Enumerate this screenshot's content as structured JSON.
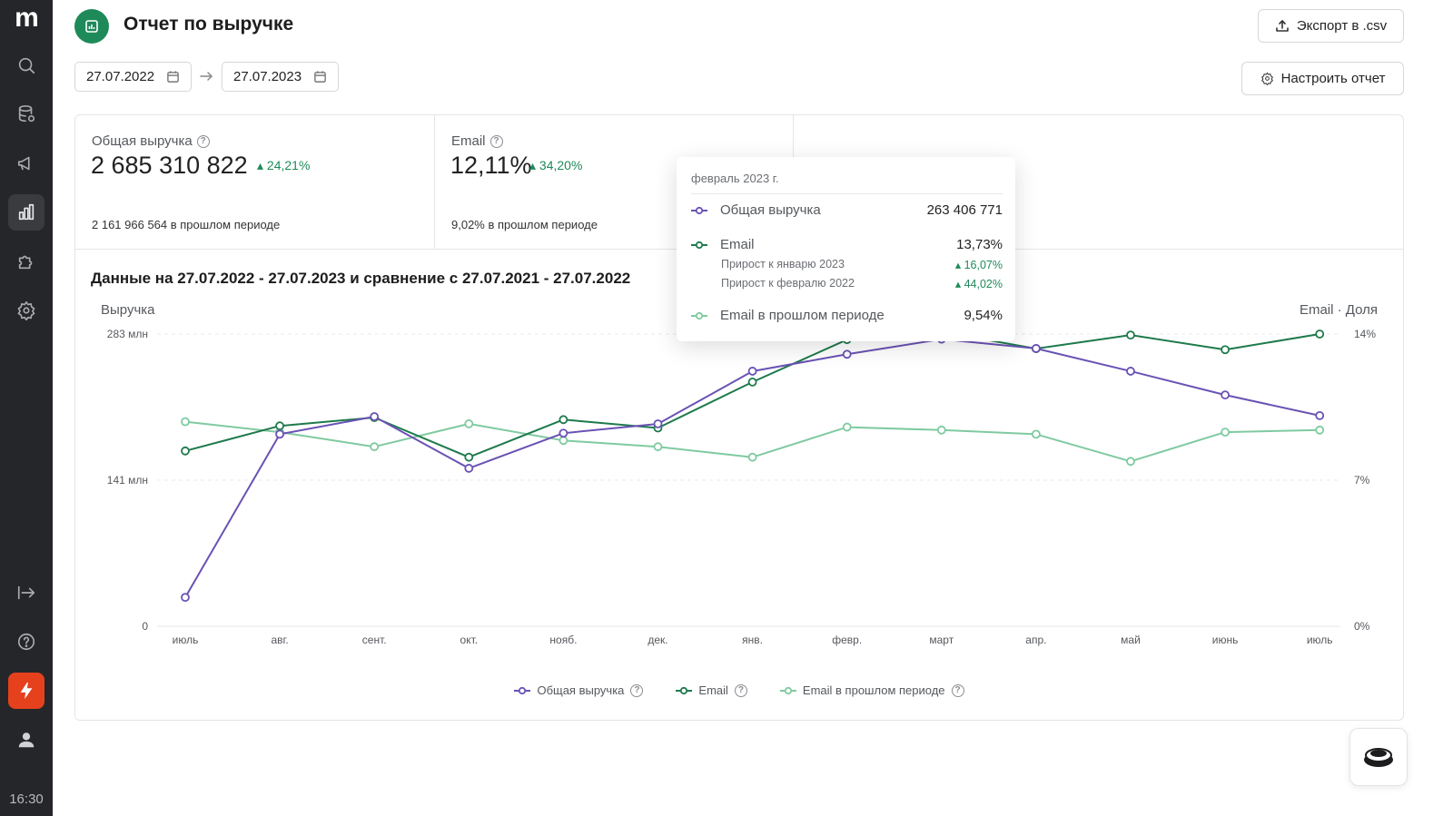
{
  "app": {
    "logo": "m",
    "clock": "16:30"
  },
  "nav": [
    {
      "icon": "search-icon"
    },
    {
      "icon": "database-icon"
    },
    {
      "icon": "megaphone-icon"
    },
    {
      "icon": "chart-icon",
      "active": true
    },
    {
      "icon": "puzzle-icon"
    },
    {
      "icon": "gear-icon"
    },
    {
      "icon": "exit-arrow-icon"
    },
    {
      "icon": "help-icon"
    },
    {
      "icon": "lightning-icon"
    },
    {
      "icon": "user-icon"
    }
  ],
  "header": {
    "title": "Отчет по выручке",
    "export_label": "Экспорт в .csv",
    "settings_label": "Настроить отчет"
  },
  "dates": {
    "from": "27.07.2022",
    "to": "27.07.2023"
  },
  "kpis": [
    {
      "label": "Общая выручка",
      "value": "2 685 310 822",
      "delta": "24,21%",
      "prev": "2 161 966 564 в прошлом периоде"
    },
    {
      "label": "Email",
      "value": "12,11%",
      "delta": "34,20%",
      "prev": "9,02% в прошлом периоде"
    }
  ],
  "chart_title": "Данные на 27.07.2022 - 27.07.2023 и сравнение с 27.07.2021 - 27.07.2022",
  "chart_data": {
    "type": "line",
    "x": [
      "июль",
      "авг.",
      "сент.",
      "окт.",
      "нояб.",
      "дек.",
      "янв.",
      "февр.",
      "март",
      "апр.",
      "май",
      "июнь",
      "июль"
    ],
    "ylabel": "Выручка",
    "ylabel_right": "Email · Доля",
    "y_ticks": [
      "0",
      "141 млн",
      "283 млн"
    ],
    "y_right_ticks": [
      "0%",
      "7%",
      "14%"
    ],
    "ylim": [
      0,
      283000000
    ],
    "ylim_right": [
      0,
      14
    ],
    "series": [
      {
        "name": "Общая выручка",
        "axis": "left",
        "color": "#6a52b4",
        "values": [
          28000000,
          186000000,
          203000000,
          153000000,
          187000000,
          196000000,
          247000000,
          263406771,
          278000000,
          269000000,
          247000000,
          224000000,
          204000000
        ]
      },
      {
        "name": "Email",
        "axis": "right",
        "color": "#1e7a4c",
        "values": [
          8.4,
          9.6,
          10.0,
          8.1,
          9.9,
          9.5,
          11.7,
          13.73,
          14.1,
          13.3,
          13.95,
          13.25,
          14.0
        ]
      },
      {
        "name": "Email в прошлом периоде",
        "axis": "right",
        "color": "#7fcaa0",
        "values": [
          9.8,
          9.3,
          8.6,
          9.7,
          8.9,
          8.6,
          8.1,
          9.54,
          9.4,
          9.2,
          7.9,
          9.3,
          9.4
        ]
      }
    ],
    "legend": "bottom-center",
    "grid": true
  },
  "tooltip": {
    "month": "февраль 2023 г.",
    "rows": [
      {
        "label": "Общая выручка",
        "value": "263 406 771"
      },
      {
        "label": "Email",
        "value": "13,73%"
      },
      {
        "label": "Email в прошлом периоде",
        "value": "9,54%"
      }
    ],
    "subrows": [
      {
        "label": "Прирост к январю 2023",
        "value": "16,07%"
      },
      {
        "label": "Прирост к февралю 2022",
        "value": "44,02%"
      }
    ]
  }
}
